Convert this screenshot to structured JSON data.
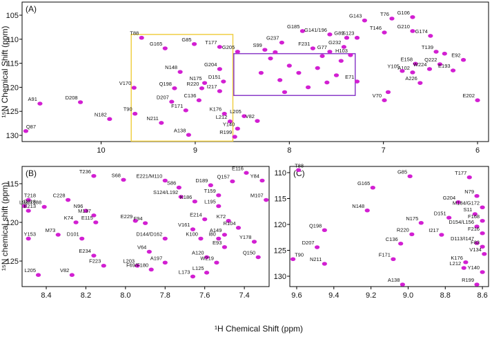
{
  "xlabel": "¹H Chemical Shift (ppm)",
  "chart_data": [
    {
      "type": "scatter",
      "panel_label": "(A)",
      "ylabel": "¹⁵N Chemical Shift (ppm)",
      "color": "#d21fd2",
      "xlim": [
        10.84,
        5.883
      ],
      "ylim": [
        102.27,
        131.29
      ],
      "xticks": [
        10,
        9,
        8,
        7,
        6
      ],
      "yticks": [
        105,
        110,
        115,
        120,
        125,
        130
      ],
      "boxes": [
        {
          "color": "#f0cf45",
          "xlim": [
            9.68,
            8.6
          ],
          "ylim": [
            109.0,
            131.2
          ]
        },
        {
          "color": "#8a3cc8",
          "xlim": [
            8.59,
            7.3
          ],
          "ylim": [
            113.0,
            121.7
          ]
        }
      ],
      "x": [
        6.69,
        6.91,
        7.2,
        7.86,
        7.57,
        6.99,
        6.69,
        6.5,
        7.28,
        7.39,
        8.08,
        7.42,
        7.75,
        8.26,
        8.55,
        7.57,
        7.35,
        6.44,
        6.15,
        6.66,
        6.4,
        6.51,
        6.69,
        6.8,
        6.26,
        7.28,
        6.61,
        6.0,
        6.99,
        9.01,
        8.74,
        9.57,
        9.32,
        8.74,
        9.16,
        8.9,
        8.7,
        8.93,
        9.22,
        8.74,
        9.65,
        8.96,
        9.25,
        9.1,
        8.69,
        9.64,
        8.63,
        9.36,
        9.91,
        8.55,
        8.48,
        8.34,
        9.07,
        8.58,
        10.65,
        10.22,
        10.8,
        8.2,
        8.0,
        7.9,
        8.1,
        7.7,
        7.6,
        7.5,
        8.3,
        7.8,
        8.05,
        7.45,
        7.65,
        6.35,
        6.95,
        8.15
      ],
      "values": [
        105.4,
        105.7,
        106.1,
        108.3,
        109.0,
        108.6,
        108.3,
        109.3,
        109.7,
        109.7,
        110.7,
        111.6,
        111.9,
        112.2,
        112.6,
        112.6,
        113.3,
        112.6,
        114.3,
        115.1,
        115.2,
        116.2,
        116.9,
        116.6,
        116.5,
        118.8,
        119.1,
        122.7,
        122.7,
        111.0,
        111.6,
        109.7,
        111.9,
        116.2,
        116.8,
        119.1,
        118.8,
        120.2,
        120.2,
        120.8,
        120.1,
        122.7,
        123.0,
        124.8,
        125.5,
        125.5,
        127.1,
        127.4,
        126.6,
        128.6,
        126.0,
        127.0,
        129.9,
        130.3,
        123.4,
        123.1,
        129.1,
        114.0,
        115.5,
        117.0,
        118.5,
        116.0,
        119.0,
        117.5,
        117.0,
        120.0,
        121.0,
        114.5,
        113.5,
        113.0,
        121.0,
        112.7
      ],
      "labels": [
        "G106",
        "T76",
        "G143",
        "G185",
        "G141/196",
        "T146",
        "G210",
        "G174",
        "S123",
        "G89",
        "G237",
        "G232",
        "F231",
        "S99",
        "G205",
        "G77",
        "H103",
        "T139",
        "E92",
        "E158",
        "Q222",
        "W224",
        "A102",
        "Y105",
        "E193",
        "E71",
        "A226",
        "E202",
        "V70",
        "G85",
        "T177",
        "T88",
        "G165",
        "G204",
        "N148",
        "N175",
        "D151",
        "R220",
        "Q198",
        "I217",
        "V170",
        "C136",
        "D207",
        "F171",
        "K176",
        "T90",
        "L212",
        "N211",
        "N182",
        "Y140",
        "L205",
        "V82",
        "A138",
        "R199",
        "A91",
        "D208",
        "Q87",
        null,
        null,
        null,
        null,
        null,
        null,
        null,
        null,
        null,
        null,
        null,
        null,
        null,
        null,
        null
      ]
    },
    {
      "type": "scatter",
      "panel_label": "(B)",
      "ylabel": "¹⁵N chemical shift (ppm)",
      "color": "#d21fd2",
      "xlim": [
        8.522,
        7.275
      ],
      "ylim": [
        112.77,
        128.3
      ],
      "xticks": [
        8.4,
        8.2,
        {
          "value": 8,
          "label": "8.0"
        },
        7.8,
        7.6,
        7.4
      ],
      "yticks": [
        115,
        120,
        125
      ],
      "x": [
        7.39,
        7.46,
        7.31,
        8.16,
        8.01,
        7.8,
        7.73,
        7.57,
        7.53,
        8.49,
        8.51,
        8.41,
        8.49,
        8.29,
        7.72,
        7.65,
        7.53,
        7.29,
        8.2,
        8.16,
        7.95,
        7.9,
        8.25,
        8.15,
        7.6,
        7.48,
        7.43,
        8.49,
        8.34,
        8.22,
        7.66,
        7.62,
        7.53,
        7.5,
        7.8,
        7.35,
        7.5,
        7.88,
        8.16,
        7.59,
        7.54,
        7.33,
        7.8,
        8.11,
        7.94,
        7.87,
        7.59,
        7.66,
        8.44,
        8.27
      ],
      "values": [
        113.6,
        114.7,
        114.6,
        114.0,
        114.5,
        114.6,
        115.5,
        115.2,
        116.5,
        117.1,
        117.9,
        118.0,
        118.5,
        117.1,
        116.7,
        117.3,
        117.9,
        117.1,
        118.5,
        119.1,
        119.8,
        120.1,
        120.0,
        120.0,
        119.6,
        119.8,
        120.7,
        122.1,
        121.6,
        122.1,
        120.9,
        122.1,
        122.1,
        121.6,
        122.1,
        122.5,
        123.2,
        123.8,
        124.3,
        124.5,
        125.2,
        124.5,
        125.2,
        125.6,
        125.6,
        126.1,
        126.5,
        127.0,
        126.8,
        126.8
      ],
      "labels": [
        "E116",
        "Q157",
        "Y84",
        "T236",
        "S68",
        "E221/M110",
        "S86",
        "D189",
        "T159",
        "T218",
        "D118",
        "L98/Y188",
        "E213",
        "C228",
        "S124/L192",
        "K186",
        "L195",
        "M107",
        "N96",
        "M137",
        "E229",
        "F94",
        "K74",
        "E115",
        "E214",
        "K72",
        "R104",
        "Y153",
        "M73",
        "D101",
        "V161",
        "K100",
        "I80",
        "A149",
        "D144/D162",
        "Y178",
        "E93",
        "V64",
        "E234",
        "A120",
        "W219",
        "Q150",
        "A197",
        "F223",
        "L203",
        "F69/F180",
        "L125",
        "L173",
        "L205",
        "V82"
      ]
    },
    {
      "type": "scatter",
      "panel_label": "(C)",
      "color": "#d21fd2",
      "xlim": [
        9.637,
        8.567
      ],
      "ylim": [
        108.8,
        132.0
      ],
      "xticks": [
        9.6,
        9.4,
        9.2,
        {
          "value": 9,
          "label": "9.0"
        },
        8.8,
        8.6
      ],
      "yticks": [
        110,
        115,
        120,
        125,
        130
      ],
      "x": [
        9.59,
        8.99,
        8.67,
        9.19,
        8.63,
        8.73,
        8.6,
        9.22,
        8.64,
        8.6,
        8.78,
        8.93,
        8.63,
        8.6,
        9.45,
        8.98,
        8.82,
        9.04,
        8.63,
        8.6,
        9.49,
        9.62,
        9.08,
        8.59,
        8.69,
        8.7,
        9.45,
        8.6,
        9.03,
        8.63
      ],
      "values": [
        109.5,
        110.7,
        110.9,
        112.9,
        114.5,
        115.7,
        116.7,
        117.3,
        118.0,
        119.3,
        118.7,
        119.7,
        120.4,
        121.7,
        121.1,
        121.9,
        122.0,
        123.7,
        123.6,
        124.3,
        124.4,
        126.7,
        126.7,
        125.7,
        127.3,
        128.4,
        127.6,
        129.2,
        131.6,
        131.6
      ],
      "labels": [
        "T88",
        "G85",
        "T177",
        "G165",
        "N79",
        "G204",
        "M184/G172",
        "N148",
        "S11",
        "F168",
        "D151",
        "N175",
        "D154/L156",
        "F216",
        "Q198",
        "R220",
        "I217",
        "C136",
        "D113/I147",
        "F83",
        "D207",
        "T90",
        "F171",
        "V134",
        "K176",
        "L212",
        "N211",
        "Y140",
        "A138",
        "R199"
      ]
    }
  ]
}
